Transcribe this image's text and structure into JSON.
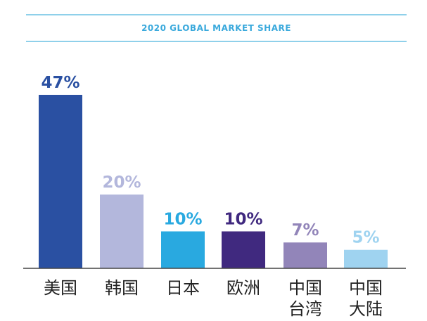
{
  "chart_data": {
    "type": "bar",
    "title": "2020 GLOBAL MARKET SHARE",
    "categories": [
      [
        "美国"
      ],
      [
        "韩国"
      ],
      [
        "日本"
      ],
      [
        "欧洲"
      ],
      [
        "中国",
        "台湾"
      ],
      [
        "中国",
        "大陆"
      ]
    ],
    "values": [
      47,
      20,
      10,
      10,
      7,
      5
    ],
    "value_labels": [
      "47%",
      "20%",
      "10%",
      "10%",
      "7%",
      "5%"
    ],
    "colors": [
      "#2a50a2",
      "#b3b7dc",
      "#29a9e0",
      "#40297f",
      "#9285b9",
      "#9fd3f0"
    ],
    "ylim": [
      0,
      50
    ],
    "grid": false,
    "legend": "none"
  }
}
